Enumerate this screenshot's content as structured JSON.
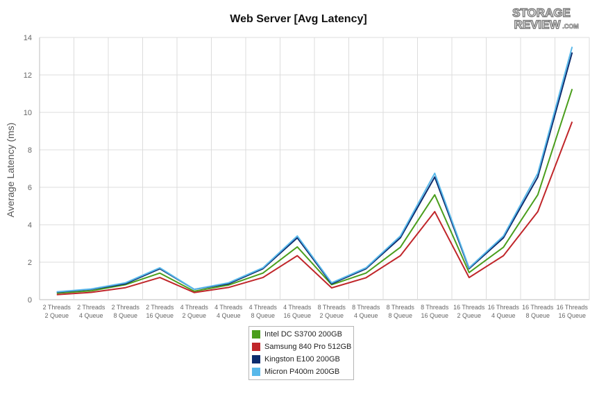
{
  "title": "Web Server [Avg Latency]",
  "watermark": {
    "line1": "STORAGE",
    "line2": "REVIEW",
    "suffix": ".COM"
  },
  "chart_data": {
    "type": "line",
    "title": "Web Server [Avg Latency]",
    "xlabel": "",
    "ylabel": "Average Latency (ms)",
    "ylim": [
      0,
      14
    ],
    "yticks": [
      0,
      2,
      4,
      6,
      8,
      10,
      12,
      14
    ],
    "grid": true,
    "legend_position": "bottom",
    "categories": [
      [
        "2 Threads",
        "2 Queue"
      ],
      [
        "2 Threads",
        "4 Queue"
      ],
      [
        "2 Threads",
        "8 Queue"
      ],
      [
        "2 Threads",
        "16 Queue"
      ],
      [
        "4 Threads",
        "2 Queue"
      ],
      [
        "4 Threads",
        "4 Queue"
      ],
      [
        "4 Threads",
        "8 Queue"
      ],
      [
        "4 Threads",
        "16 Queue"
      ],
      [
        "8 Threads",
        "2 Queue"
      ],
      [
        "8 Threads",
        "4 Queue"
      ],
      [
        "8 Threads",
        "8 Queue"
      ],
      [
        "8 Threads",
        "16 Queue"
      ],
      [
        "16 Threads",
        "2 Queue"
      ],
      [
        "16 Threads",
        "4 Queue"
      ],
      [
        "16 Threads",
        "8 Queue"
      ],
      [
        "16 Threads",
        "16 Queue"
      ]
    ],
    "series": [
      {
        "name": "Intel DC S3700 200GB",
        "color": "#4a9e1c",
        "values": [
          0.35,
          0.47,
          0.8,
          1.42,
          0.45,
          0.78,
          1.42,
          2.82,
          0.8,
          1.42,
          2.8,
          5.6,
          1.45,
          2.8,
          5.6,
          11.25
        ]
      },
      {
        "name": "Samsung 840 Pro 512GB",
        "color": "#c0262a",
        "values": [
          0.27,
          0.39,
          0.64,
          1.18,
          0.38,
          0.65,
          1.18,
          2.35,
          0.63,
          1.17,
          2.35,
          4.7,
          1.18,
          2.35,
          4.7,
          9.5
        ]
      },
      {
        "name": "Kingston E100 200GB",
        "color": "#0c2c6e",
        "values": [
          0.4,
          0.55,
          0.85,
          1.65,
          0.55,
          0.85,
          1.65,
          3.3,
          0.85,
          1.65,
          3.3,
          6.55,
          1.65,
          3.3,
          6.55,
          13.2
        ]
      },
      {
        "name": "Micron P400m 200GB",
        "color": "#58b8ea",
        "values": [
          0.42,
          0.57,
          0.9,
          1.7,
          0.55,
          0.9,
          1.7,
          3.4,
          0.9,
          1.7,
          3.4,
          6.75,
          1.7,
          3.4,
          6.75,
          13.5
        ]
      }
    ]
  }
}
